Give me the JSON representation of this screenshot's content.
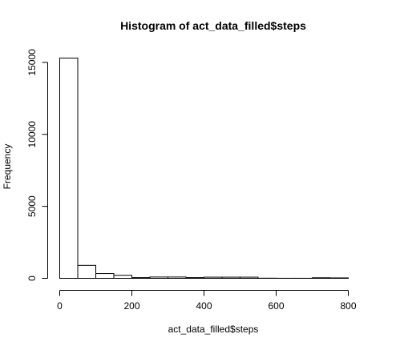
{
  "chart_data": {
    "type": "bar",
    "title": "Histogram of act_data_filled$steps",
    "xlabel": "act_data_filled$steps",
    "ylabel": "Frequency",
    "bin_width": 50,
    "bin_edges": [
      0,
      50,
      100,
      150,
      200,
      250,
      300,
      350,
      400,
      450,
      500,
      550,
      600,
      650,
      700,
      750,
      800
    ],
    "values": [
      15300,
      900,
      330,
      210,
      50,
      90,
      90,
      50,
      80,
      80,
      80,
      10,
      5,
      5,
      40,
      30
    ],
    "xlim": [
      0,
      800
    ],
    "ylim": [
      0,
      15300
    ],
    "x_ticks": [
      0,
      200,
      400,
      600,
      800
    ],
    "y_ticks": [
      0,
      5000,
      10000,
      15000
    ],
    "grid": false
  }
}
